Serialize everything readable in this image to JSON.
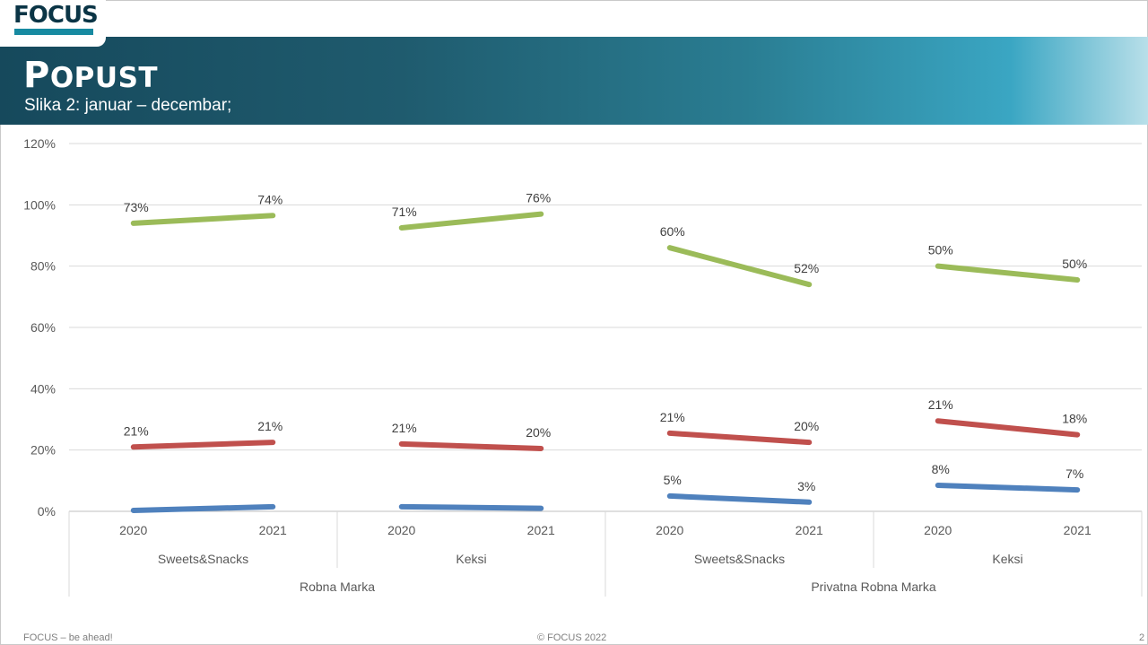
{
  "header": {
    "logo_text": "FOCUS",
    "title": "Popust",
    "subtitle": "Slika 2: januar – decembar;"
  },
  "footer": {
    "left": "FOCUS – be ahead!",
    "center": "© FOCUS 2022",
    "page": "2"
  },
  "colors": {
    "green": "#9bbb59",
    "red": "#c0504d",
    "blue": "#4f81bd"
  },
  "chart_data": {
    "type": "line",
    "ylim": [
      0,
      120
    ],
    "yticks": [
      "0%",
      "20%",
      "40%",
      "60%",
      "80%",
      "100%",
      "120%"
    ],
    "grid": true,
    "groups": [
      {
        "label": "Robna Marka",
        "subgroups": [
          {
            "label": "Sweets&Snacks",
            "years": [
              "2020",
              "2021"
            ]
          },
          {
            "label": "Keksi",
            "years": [
              "2020",
              "2021"
            ]
          }
        ]
      },
      {
        "label": "Privatna Robna Marka",
        "subgroups": [
          {
            "label": "Sweets&Snacks",
            "years": [
              "2020",
              "2021"
            ]
          },
          {
            "label": "Keksi",
            "years": [
              "2020",
              "2021"
            ]
          }
        ]
      }
    ],
    "series": [
      {
        "color": "#9bbb59",
        "values": [
          [
            94,
            96.5
          ],
          [
            92.5,
            97
          ],
          [
            86,
            74
          ],
          [
            80,
            75.5
          ]
        ],
        "labels": [
          [
            "73%",
            "74%"
          ],
          [
            "71%",
            "76%"
          ],
          [
            "60%",
            "52%"
          ],
          [
            "50%",
            "50%"
          ]
        ]
      },
      {
        "color": "#c0504d",
        "values": [
          [
            21,
            22.5
          ],
          [
            22,
            20.5
          ],
          [
            25.5,
            22.5
          ],
          [
            29.5,
            25
          ]
        ],
        "labels": [
          [
            "21%",
            "21%"
          ],
          [
            "21%",
            "20%"
          ],
          [
            "21%",
            "20%"
          ],
          [
            "21%",
            "18%"
          ]
        ]
      },
      {
        "color": "#4f81bd",
        "values": [
          [
            0.3,
            1.5
          ],
          [
            1.5,
            1
          ],
          [
            5,
            3
          ],
          [
            8.5,
            7
          ]
        ],
        "labels": [
          [
            "",
            ""
          ],
          [
            "",
            ""
          ],
          [
            "5%",
            "3%"
          ],
          [
            "8%",
            "7%"
          ]
        ]
      }
    ]
  }
}
